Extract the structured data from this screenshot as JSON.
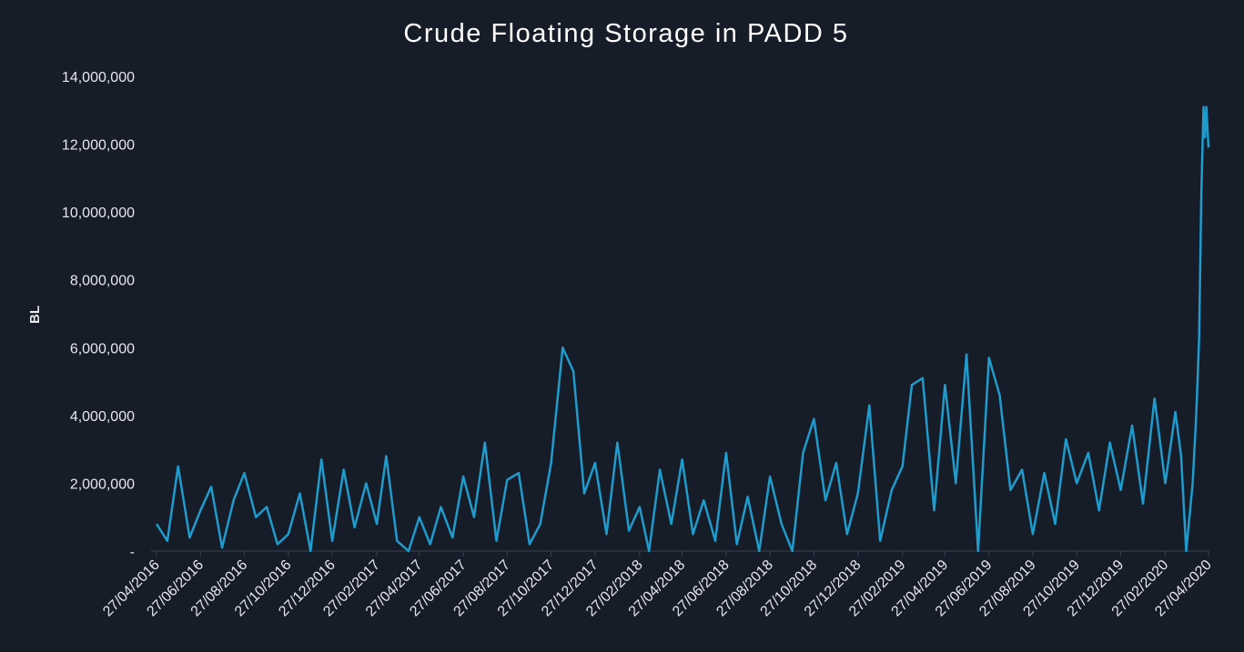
{
  "chart_data": {
    "type": "line",
    "title": "Crude Floating Storage in PADD 5",
    "ylabel": "BL",
    "color": "#1f9bcc",
    "x": [
      "27/04/2016",
      "12/05/2016",
      "27/05/2016",
      "12/06/2016",
      "27/06/2016",
      "12/07/2016",
      "27/07/2016",
      "12/08/2016",
      "27/08/2016",
      "12/09/2016",
      "27/09/2016",
      "12/10/2016",
      "27/10/2016",
      "12/11/2016",
      "27/11/2016",
      "12/12/2016",
      "27/12/2016",
      "12/01/2017",
      "27/01/2017",
      "12/02/2017",
      "27/02/2017",
      "12/03/2017",
      "27/03/2017",
      "12/04/2017",
      "27/04/2017",
      "12/05/2017",
      "27/05/2017",
      "12/06/2017",
      "27/06/2017",
      "12/07/2017",
      "27/07/2017",
      "12/08/2017",
      "27/08/2017",
      "12/09/2017",
      "27/09/2017",
      "12/10/2017",
      "27/10/2017",
      "12/11/2017",
      "27/11/2017",
      "12/12/2017",
      "27/12/2017",
      "12/01/2018",
      "27/01/2018",
      "12/02/2018",
      "27/02/2018",
      "12/03/2018",
      "27/03/2018",
      "12/04/2018",
      "27/04/2018",
      "12/05/2018",
      "27/05/2018",
      "12/06/2018",
      "27/06/2018",
      "12/07/2018",
      "27/07/2018",
      "12/08/2018",
      "27/08/2018",
      "12/09/2018",
      "27/09/2018",
      "12/10/2018",
      "27/10/2018",
      "12/11/2018",
      "27/11/2018",
      "12/12/2018",
      "27/12/2018",
      "12/01/2019",
      "27/01/2019",
      "12/02/2019",
      "27/02/2019",
      "12/03/2019",
      "27/03/2019",
      "12/04/2019",
      "27/04/2019",
      "12/05/2019",
      "27/05/2019",
      "12/06/2019",
      "27/06/2019",
      "12/07/2019",
      "27/07/2019",
      "12/08/2019",
      "27/08/2019",
      "12/09/2019",
      "27/09/2019",
      "12/10/2019",
      "27/10/2019",
      "12/11/2019",
      "27/11/2019",
      "12/12/2019",
      "27/12/2019",
      "12/01/2020",
      "27/01/2020",
      "12/02/2020",
      "27/02/2020",
      "12/03/2020",
      "20/03/2020",
      "27/03/2020",
      "05/04/2020",
      "10/04/2020",
      "14/04/2020",
      "17/04/2020",
      "20/04/2020",
      "22/04/2020",
      "24/04/2020",
      "27/04/2020"
    ],
    "values": [
      800000,
      300000,
      2500000,
      400000,
      1200000,
      1900000,
      100000,
      1500000,
      2300000,
      1000000,
      1300000,
      200000,
      500000,
      1700000,
      0,
      2700000,
      300000,
      2400000,
      700000,
      2000000,
      800000,
      2800000,
      300000,
      0,
      1000000,
      200000,
      1300000,
      400000,
      2200000,
      1000000,
      3200000,
      300000,
      2100000,
      2300000,
      200000,
      800000,
      2600000,
      6000000,
      5300000,
      1700000,
      2600000,
      500000,
      3200000,
      600000,
      1300000,
      0,
      2400000,
      800000,
      2700000,
      500000,
      1500000,
      300000,
      2900000,
      200000,
      1600000,
      0,
      2200000,
      800000,
      0,
      2900000,
      3900000,
      1500000,
      2600000,
      500000,
      1700000,
      4300000,
      300000,
      1800000,
      2500000,
      4900000,
      5100000,
      1200000,
      4900000,
      2000000,
      5800000,
      0,
      5700000,
      4600000,
      1800000,
      2400000,
      500000,
      2300000,
      800000,
      3300000,
      2000000,
      2900000,
      1200000,
      3200000,
      1800000,
      3700000,
      1400000,
      4500000,
      2000000,
      4100000,
      2800000,
      0,
      2000000,
      4000000,
      6300000,
      10500000,
      13100000,
      12200000,
      13100000,
      11900000
    ],
    "xlim": [
      "27/04/2016",
      "27/04/2020"
    ],
    "xticks": [
      "27/04/2016",
      "27/06/2016",
      "27/08/2016",
      "27/10/2016",
      "27/12/2016",
      "27/02/2017",
      "27/04/2017",
      "27/06/2017",
      "27/08/2017",
      "27/10/2017",
      "27/12/2017",
      "27/02/2018",
      "27/04/2018",
      "27/06/2018",
      "27/08/2018",
      "27/10/2018",
      "27/12/2018",
      "27/02/2019",
      "27/04/2019",
      "27/06/2019",
      "27/08/2019",
      "27/10/2019",
      "27/12/2019",
      "27/02/2020",
      "27/04/2020"
    ],
    "ylim": [
      0,
      14000000
    ],
    "yticks": [
      {
        "value": 0,
        "label": "-"
      },
      {
        "value": 2000000,
        "label": "2,000,000"
      },
      {
        "value": 4000000,
        "label": "4,000,000"
      },
      {
        "value": 6000000,
        "label": "6,000,000"
      },
      {
        "value": 8000000,
        "label": "8,000,000"
      },
      {
        "value": 10000000,
        "label": "10,000,000"
      },
      {
        "value": 12000000,
        "label": "12,000,000"
      },
      {
        "value": 14000000,
        "label": "14,000,000"
      }
    ]
  }
}
